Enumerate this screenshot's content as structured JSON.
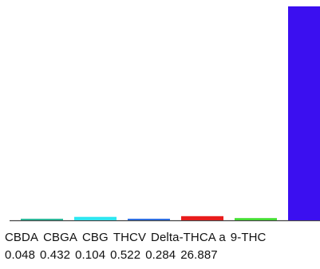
{
  "chart_data": {
    "type": "bar",
    "title": "",
    "xlabel": "",
    "ylabel": "",
    "categories": [
      "CBDA",
      "CBGA",
      "CBG",
      "THCV",
      "Delta-THCA a",
      "9-THC"
    ],
    "values": [
      0.048,
      0.432,
      0.104,
      0.522,
      0.284,
      26.887
    ],
    "value_labels": [
      "0.048",
      "0.432",
      "0.104",
      "0.522",
      "0.284",
      "26.887"
    ],
    "ylim": [
      0,
      26.887
    ],
    "grid": false,
    "legend": "none",
    "colors": [
      "#2fb89a",
      "#2ee6f0",
      "#2f6fe0",
      "#e81c1c",
      "#44dd33",
      "#3b0ff0"
    ],
    "axis_color": "#444444"
  }
}
